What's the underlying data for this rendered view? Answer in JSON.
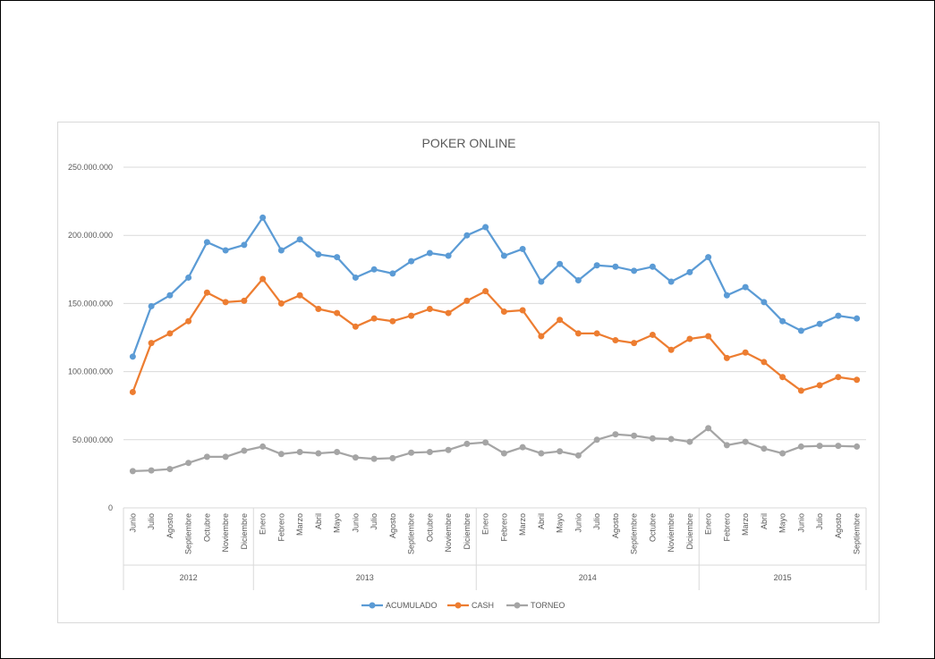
{
  "chart_data": {
    "type": "line",
    "title": "POKER ONLINE",
    "xlabel": "",
    "ylabel": "",
    "ylim": [
      0,
      250000000
    ],
    "yticks": [
      {
        "value": 0,
        "label": "0"
      },
      {
        "value": 50000000,
        "label": "50.000.000"
      },
      {
        "value": 100000000,
        "label": "100.000.000"
      },
      {
        "value": 150000000,
        "label": "150.000.000"
      },
      {
        "value": 200000000,
        "label": "200.000.000"
      },
      {
        "value": 250000000,
        "label": "250.000.000"
      }
    ],
    "grid": true,
    "legend": "bottom",
    "categories": [
      "Junio",
      "Julio",
      "Agosto",
      "Septiembre",
      "Octubre",
      "Noviembre",
      "Diciembre",
      "Enero",
      "Febrero",
      "Marzo",
      "Abril",
      "Mayo",
      "Junio",
      "Julio",
      "Agosto",
      "Septiembre",
      "Octubre",
      "Noviembre",
      "Diciembre",
      "Enero",
      "Febrero",
      "Marzo",
      "Abril",
      "Mayo",
      "Junio",
      "Julio",
      "Agosto",
      "Septiembre",
      "Octubre",
      "Noviembre",
      "Diciembre",
      "Enero",
      "Febrero",
      "Marzo",
      "Abril",
      "Mayo",
      "Junio",
      "Julio",
      "Agosto",
      "Septiembre"
    ],
    "groups": [
      {
        "label": "2012",
        "count": 7
      },
      {
        "label": "2013",
        "count": 12
      },
      {
        "label": "2014",
        "count": 12
      },
      {
        "label": "2015",
        "count": 9
      }
    ],
    "series": [
      {
        "name": "ACUMULADO",
        "color": "#5b9bd5",
        "values": [
          111000000,
          148000000,
          156000000,
          169000000,
          195000000,
          189000000,
          193000000,
          213000000,
          189000000,
          197000000,
          186000000,
          184000000,
          169000000,
          175000000,
          172000000,
          181000000,
          187000000,
          185000000,
          200000000,
          206000000,
          185000000,
          190000000,
          166000000,
          179000000,
          167000000,
          178000000,
          177000000,
          174000000,
          177000000,
          166000000,
          173000000,
          184000000,
          156000000,
          162000000,
          151000000,
          137000000,
          130000000,
          135000000,
          141000000,
          139000000
        ]
      },
      {
        "name": "CASH",
        "color": "#ed7d31",
        "values": [
          85000000,
          121000000,
          128000000,
          137000000,
          158000000,
          151000000,
          152000000,
          168000000,
          150000000,
          156000000,
          146000000,
          143000000,
          133000000,
          139000000,
          137000000,
          141000000,
          146000000,
          143000000,
          152000000,
          159000000,
          144000000,
          145000000,
          126000000,
          138000000,
          128000000,
          128000000,
          123000000,
          121000000,
          127000000,
          116000000,
          124000000,
          126000000,
          110000000,
          114000000,
          107000000,
          96000000,
          86000000,
          90000000,
          96000000,
          94000000
        ]
      },
      {
        "name": "TORNEO",
        "color": "#a5a5a5",
        "values": [
          27000000,
          27500000,
          28500000,
          33000000,
          37500000,
          37500000,
          42000000,
          45000000,
          39500000,
          41000000,
          40000000,
          41000000,
          37000000,
          36000000,
          36500000,
          40500000,
          41000000,
          42500000,
          47000000,
          48000000,
          40000000,
          44500000,
          40000000,
          41500000,
          38500000,
          50000000,
          54000000,
          53000000,
          51000000,
          50500000,
          48500000,
          58500000,
          46000000,
          48500000,
          43500000,
          40000000,
          45000000,
          45500000,
          45500000,
          45000000
        ]
      }
    ]
  }
}
